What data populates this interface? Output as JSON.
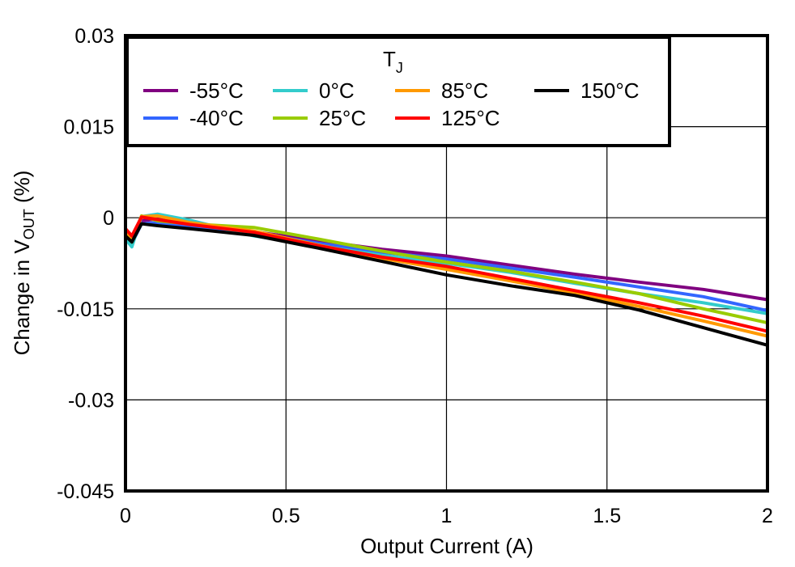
{
  "chart_data": {
    "type": "line",
    "title": "",
    "xlabel": "Output Current (A)",
    "ylabel": "Change in VOUT (%)",
    "ylabel_parts": {
      "prefix": "Change in V",
      "subscript": "OUT",
      "suffix": " (%)"
    },
    "xlim": [
      0,
      2
    ],
    "ylim": [
      -0.045,
      0.03
    ],
    "x_ticks": [
      0,
      0.5,
      1,
      1.5,
      2
    ],
    "x_tick_labels": [
      "0",
      "0.5",
      "1",
      "1.5",
      "2"
    ],
    "y_ticks": [
      0.03,
      0.015,
      0,
      -0.015,
      -0.03,
      -0.045
    ],
    "y_tick_labels": [
      "0.03",
      "0.015",
      "0",
      "-0.015",
      "-0.03",
      "-0.045"
    ],
    "grid": true,
    "legend": {
      "title": "T",
      "title_subscript": "J",
      "position": "top-left-inside"
    },
    "x": [
      0,
      0.02,
      0.05,
      0.1,
      0.2,
      0.4,
      0.6,
      0.8,
      1.0,
      1.2,
      1.4,
      1.6,
      1.8,
      2.0
    ],
    "series": [
      {
        "name": "-55°C",
        "color": "#800080",
        "values": [
          -0.0025,
          -0.0035,
          -0.0005,
          -0.0002,
          -0.0012,
          -0.0023,
          -0.0038,
          -0.0052,
          -0.0063,
          -0.0078,
          -0.0093,
          -0.0106,
          -0.0118,
          -0.0135
        ]
      },
      {
        "name": "-40°C",
        "color": "#3366FF",
        "values": [
          -0.003,
          -0.0042,
          -0.001,
          -0.0008,
          -0.0014,
          -0.0025,
          -0.0042,
          -0.0057,
          -0.0068,
          -0.0083,
          -0.0098,
          -0.0114,
          -0.013,
          -0.0153
        ]
      },
      {
        "name": "0°C",
        "color": "#33CCCC",
        "values": [
          -0.0035,
          -0.0048,
          0.0002,
          0.0006,
          -0.0004,
          -0.003,
          -0.0046,
          -0.0062,
          -0.0075,
          -0.009,
          -0.0108,
          -0.0125,
          -0.014,
          -0.0158
        ]
      },
      {
        "name": "25°C",
        "color": "#99CC00",
        "values": [
          -0.0028,
          -0.004,
          0.0003,
          -0.0005,
          -0.001,
          -0.0016,
          -0.0035,
          -0.0055,
          -0.0073,
          -0.0088,
          -0.0106,
          -0.0125,
          -0.015,
          -0.0173
        ]
      },
      {
        "name": "85°C",
        "color": "#FF9900",
        "values": [
          -0.0022,
          -0.0035,
          0.0002,
          0.0003,
          -0.0008,
          -0.0022,
          -0.0045,
          -0.0067,
          -0.0085,
          -0.0104,
          -0.0124,
          -0.0146,
          -0.017,
          -0.0195
        ]
      },
      {
        "name": "125°C",
        "color": "#FF0000",
        "values": [
          -0.0018,
          -0.003,
          0.0001,
          -0.0003,
          -0.0011,
          -0.0024,
          -0.0046,
          -0.0065,
          -0.008,
          -0.01,
          -0.012,
          -0.014,
          -0.0162,
          -0.0187
        ]
      },
      {
        "name": "150°C",
        "color": "#000000",
        "values": [
          -0.003,
          -0.004,
          -0.001,
          -0.0013,
          -0.0018,
          -0.0029,
          -0.005,
          -0.0072,
          -0.0094,
          -0.0112,
          -0.0128,
          -0.0152,
          -0.0181,
          -0.021
        ]
      }
    ]
  }
}
